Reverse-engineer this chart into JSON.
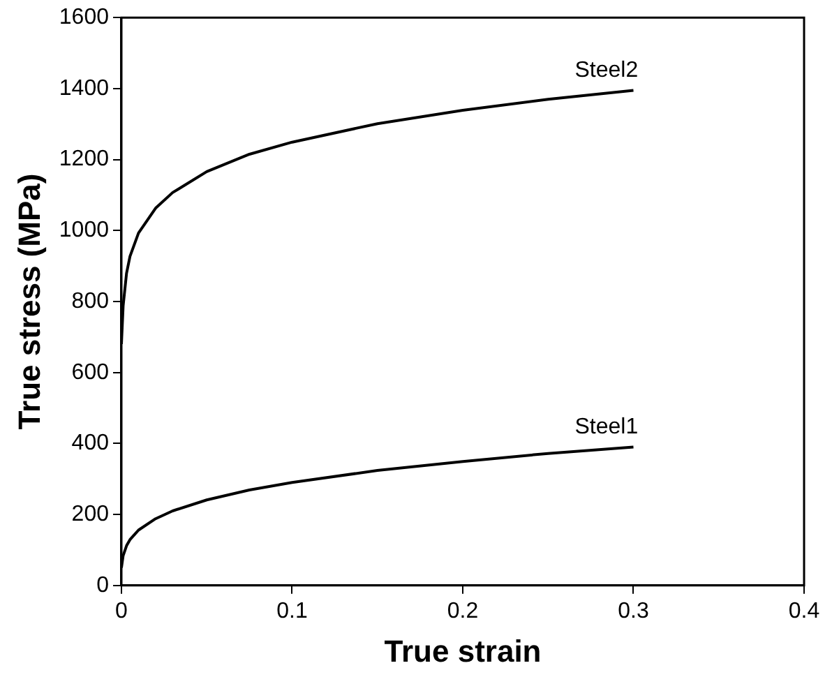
{
  "chart_data": {
    "type": "line",
    "xlabel": "True strain",
    "ylabel": "True stress (MPa)",
    "x": [
      0,
      0.001,
      0.003,
      0.005,
      0.01,
      0.02,
      0.03,
      0.05,
      0.075,
      0.1,
      0.15,
      0.2,
      0.25,
      0.3
    ],
    "series": [
      {
        "name": "Steel2",
        "color": "#000000",
        "values": [
          680,
          788,
          880,
          927,
          993,
          1063,
          1107,
          1166,
          1215,
          1249,
          1301,
          1339,
          1370,
          1395
        ]
      },
      {
        "name": "Steel1",
        "color": "#000000",
        "values": [
          50,
          84,
          112,
          129,
          156,
          188,
          210,
          241,
          269,
          290,
          324,
          349,
          372,
          390
        ]
      }
    ],
    "xlim": [
      0,
      0.4
    ],
    "xticks": [
      0,
      0.1,
      0.2,
      0.3,
      0.4
    ],
    "ylim": [
      0,
      1600
    ],
    "yticks": [
      0,
      200,
      400,
      600,
      800,
      1000,
      1200,
      1400,
      1600
    ],
    "grid": false,
    "legend": false,
    "marker": "none",
    "line_style": "solid"
  }
}
